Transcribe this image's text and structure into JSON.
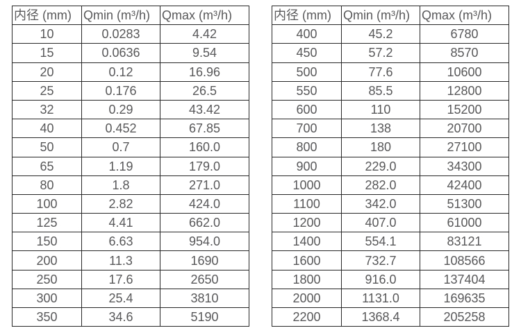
{
  "accent_colors": {
    "border": "#262626",
    "text": "#58585a",
    "background": "#ffffff"
  },
  "tables": [
    {
      "name": "flow-spec-table-small-diameters",
      "headers": [
        "内径 (mm)",
        "Qmin (m³/h)",
        "Qmax (m³/h)"
      ],
      "rows": [
        [
          "10",
          "0.0283",
          "4.42"
        ],
        [
          "15",
          "0.0636",
          "9.54"
        ],
        [
          "20",
          "0.12",
          "16.96"
        ],
        [
          "25",
          "0.176",
          "26.5"
        ],
        [
          "32",
          "0.29",
          "43.42"
        ],
        [
          "40",
          "0.452",
          "67.85"
        ],
        [
          "50",
          "0.7",
          "160.0"
        ],
        [
          "65",
          "1.19",
          "179.0"
        ],
        [
          "80",
          "1.8",
          "271.0"
        ],
        [
          "100",
          "2.82",
          "424.0"
        ],
        [
          "125",
          "4.41",
          "662.0"
        ],
        [
          "150",
          "6.63",
          "954.0"
        ],
        [
          "200",
          "11.3",
          "1690"
        ],
        [
          "250",
          "17.6",
          "2650"
        ],
        [
          "300",
          "25.4",
          "3810"
        ],
        [
          "350",
          "34.6",
          "5190"
        ]
      ]
    },
    {
      "name": "flow-spec-table-large-diameters",
      "headers": [
        "内径 (mm)",
        "Qmin (m³/h)",
        "Qmax (m³/h)"
      ],
      "rows": [
        [
          "400",
          "45.2",
          "6780"
        ],
        [
          "450",
          "57.2",
          "8570"
        ],
        [
          "500",
          "77.6",
          "10600"
        ],
        [
          "550",
          "85.5",
          "12800"
        ],
        [
          "600",
          "110",
          "15200"
        ],
        [
          "700",
          "138",
          "20700"
        ],
        [
          "800",
          "180",
          "27100"
        ],
        [
          "900",
          "229.0",
          "34300"
        ],
        [
          "1000",
          "282.0",
          "42400"
        ],
        [
          "1100",
          "342.0",
          "51300"
        ],
        [
          "1200",
          "407.0",
          "61000"
        ],
        [
          "1400",
          "554.1",
          "83121"
        ],
        [
          "1600",
          "732.7",
          "108566"
        ],
        [
          "1800",
          "916.0",
          "137404"
        ],
        [
          "2000",
          "1131.0",
          "169635"
        ],
        [
          "2200",
          "1368.4",
          "205258"
        ]
      ]
    }
  ]
}
